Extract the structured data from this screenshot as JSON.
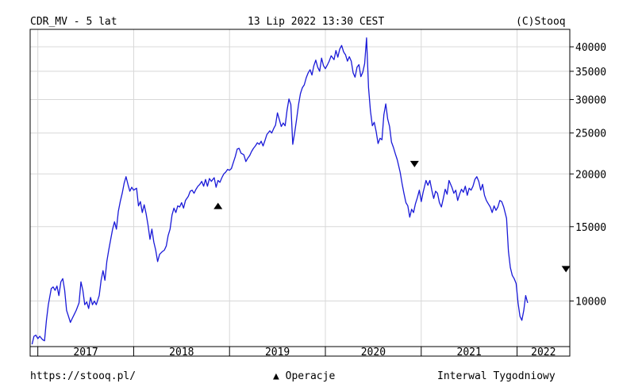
{
  "header": {
    "left": "CDR_MV - 5 lat",
    "center": "13 Lip 2022 13:30 CEST",
    "right": "(C)Stooq"
  },
  "footer": {
    "left": "https://stooq.pl/",
    "center_marker": "▲",
    "center": "Operacje",
    "right": "Interwal Tygodniowy"
  },
  "colors": {
    "line": "#1a1ad8",
    "grid": "#d8d8d8",
    "frame": "#000000"
  },
  "chart_data": {
    "type": "line",
    "scale": "log",
    "grid": true,
    "ylim": [
      7800,
      44000
    ],
    "xlim": [
      2016.92,
      2022.55
    ],
    "year_labels": [
      "2017",
      "2018",
      "2019",
      "2020",
      "2021",
      "2022"
    ],
    "yticks": [
      10000,
      15000,
      20000,
      25000,
      30000,
      35000,
      40000
    ],
    "ytick_labels": [
      "10000",
      "15000",
      "20000",
      "25000",
      "30000",
      "35000",
      "40000"
    ],
    "markers": [
      {
        "t": 2018.88,
        "y": 16800,
        "dir": "up"
      },
      {
        "t": 2020.93,
        "y": 21100,
        "dir": "down"
      },
      {
        "t": 2022.51,
        "y": 11900,
        "dir": "down"
      }
    ],
    "series": [
      {
        "values": [
          [
            2016.94,
            7900
          ],
          [
            2016.96,
            8250
          ],
          [
            2016.98,
            8300
          ],
          [
            2017.0,
            8150
          ],
          [
            2017.02,
            8250
          ],
          [
            2017.05,
            8100
          ],
          [
            2017.07,
            8050
          ],
          [
            2017.09,
            9000
          ],
          [
            2017.11,
            9800
          ],
          [
            2017.14,
            10700
          ],
          [
            2017.16,
            10800
          ],
          [
            2017.18,
            10600
          ],
          [
            2017.2,
            10850
          ],
          [
            2017.22,
            10300
          ],
          [
            2017.24,
            11100
          ],
          [
            2017.26,
            11300
          ],
          [
            2017.28,
            10600
          ],
          [
            2017.3,
            9500
          ],
          [
            2017.32,
            9200
          ],
          [
            2017.34,
            8900
          ],
          [
            2017.36,
            9100
          ],
          [
            2017.38,
            9300
          ],
          [
            2017.4,
            9500
          ],
          [
            2017.43,
            9900
          ],
          [
            2017.45,
            11100
          ],
          [
            2017.47,
            10600
          ],
          [
            2017.49,
            9800
          ],
          [
            2017.51,
            9950
          ],
          [
            2017.53,
            9600
          ],
          [
            2017.55,
            10200
          ],
          [
            2017.57,
            9800
          ],
          [
            2017.59,
            10000
          ],
          [
            2017.61,
            9800
          ],
          [
            2017.64,
            10300
          ],
          [
            2017.66,
            11200
          ],
          [
            2017.68,
            11800
          ],
          [
            2017.7,
            11200
          ],
          [
            2017.72,
            12400
          ],
          [
            2017.74,
            13200
          ],
          [
            2017.76,
            14000
          ],
          [
            2017.78,
            14800
          ],
          [
            2017.8,
            15400
          ],
          [
            2017.82,
            14800
          ],
          [
            2017.84,
            16300
          ],
          [
            2017.86,
            17200
          ],
          [
            2017.88,
            18000
          ],
          [
            2017.9,
            19000
          ],
          [
            2017.92,
            19700
          ],
          [
            2017.94,
            18900
          ],
          [
            2017.96,
            18200
          ],
          [
            2017.98,
            18600
          ],
          [
            2018.0,
            18300
          ],
          [
            2018.03,
            18500
          ],
          [
            2018.05,
            16800
          ],
          [
            2018.07,
            17200
          ],
          [
            2018.09,
            16200
          ],
          [
            2018.11,
            16900
          ],
          [
            2018.13,
            16100
          ],
          [
            2018.15,
            15100
          ],
          [
            2018.17,
            14000
          ],
          [
            2018.19,
            14800
          ],
          [
            2018.21,
            13800
          ],
          [
            2018.23,
            13200
          ],
          [
            2018.25,
            12400
          ],
          [
            2018.27,
            12900
          ],
          [
            2018.3,
            13100
          ],
          [
            2018.32,
            13200
          ],
          [
            2018.34,
            13500
          ],
          [
            2018.36,
            14300
          ],
          [
            2018.38,
            14800
          ],
          [
            2018.4,
            16000
          ],
          [
            2018.42,
            16600
          ],
          [
            2018.44,
            16200
          ],
          [
            2018.46,
            16800
          ],
          [
            2018.48,
            16700
          ],
          [
            2018.5,
            17100
          ],
          [
            2018.52,
            16600
          ],
          [
            2018.54,
            17300
          ],
          [
            2018.57,
            17700
          ],
          [
            2018.59,
            18200
          ],
          [
            2018.61,
            18300
          ],
          [
            2018.63,
            18000
          ],
          [
            2018.65,
            18400
          ],
          [
            2018.67,
            18700
          ],
          [
            2018.69,
            18900
          ],
          [
            2018.71,
            19200
          ],
          [
            2018.73,
            18700
          ],
          [
            2018.75,
            19400
          ],
          [
            2018.77,
            18700
          ],
          [
            2018.79,
            19500
          ],
          [
            2018.81,
            19200
          ],
          [
            2018.84,
            19600
          ],
          [
            2018.86,
            18600
          ],
          [
            2018.88,
            19300
          ],
          [
            2018.9,
            19100
          ],
          [
            2018.92,
            19600
          ],
          [
            2018.94,
            20000
          ],
          [
            2018.96,
            20200
          ],
          [
            2018.98,
            20500
          ],
          [
            2019.0,
            20400
          ],
          [
            2019.02,
            20600
          ],
          [
            2019.04,
            21300
          ],
          [
            2019.06,
            22000
          ],
          [
            2019.08,
            22900
          ],
          [
            2019.1,
            23000
          ],
          [
            2019.12,
            22400
          ],
          [
            2019.15,
            22200
          ],
          [
            2019.17,
            21400
          ],
          [
            2019.19,
            21800
          ],
          [
            2019.21,
            22100
          ],
          [
            2019.23,
            22600
          ],
          [
            2019.25,
            23000
          ],
          [
            2019.27,
            23300
          ],
          [
            2019.29,
            23700
          ],
          [
            2019.31,
            23500
          ],
          [
            2019.33,
            23900
          ],
          [
            2019.35,
            23300
          ],
          [
            2019.37,
            24000
          ],
          [
            2019.39,
            24800
          ],
          [
            2019.42,
            25300
          ],
          [
            2019.44,
            25000
          ],
          [
            2019.46,
            25600
          ],
          [
            2019.48,
            26100
          ],
          [
            2019.5,
            27900
          ],
          [
            2019.52,
            26900
          ],
          [
            2019.54,
            25900
          ],
          [
            2019.56,
            26400
          ],
          [
            2019.58,
            26000
          ],
          [
            2019.6,
            28300
          ],
          [
            2019.62,
            30100
          ],
          [
            2019.64,
            29200
          ],
          [
            2019.66,
            23500
          ],
          [
            2019.68,
            25100
          ],
          [
            2019.7,
            27000
          ],
          [
            2019.72,
            29200
          ],
          [
            2019.74,
            31000
          ],
          [
            2019.76,
            32000
          ],
          [
            2019.78,
            32500
          ],
          [
            2019.8,
            33800
          ],
          [
            2019.82,
            34700
          ],
          [
            2019.84,
            35300
          ],
          [
            2019.86,
            34300
          ],
          [
            2019.88,
            36100
          ],
          [
            2019.9,
            37200
          ],
          [
            2019.92,
            35800
          ],
          [
            2019.94,
            35000
          ],
          [
            2019.96,
            37600
          ],
          [
            2019.98,
            36100
          ],
          [
            2020.0,
            35500
          ],
          [
            2020.02,
            36200
          ],
          [
            2020.04,
            37000
          ],
          [
            2020.06,
            38100
          ],
          [
            2020.09,
            37300
          ],
          [
            2020.11,
            39200
          ],
          [
            2020.13,
            37800
          ],
          [
            2020.15,
            39500
          ],
          [
            2020.17,
            40300
          ],
          [
            2020.19,
            38900
          ],
          [
            2020.21,
            38300
          ],
          [
            2020.23,
            37000
          ],
          [
            2020.25,
            37900
          ],
          [
            2020.27,
            37000
          ],
          [
            2020.29,
            34700
          ],
          [
            2020.31,
            33900
          ],
          [
            2020.33,
            35800
          ],
          [
            2020.35,
            36300
          ],
          [
            2020.37,
            34000
          ],
          [
            2020.39,
            34800
          ],
          [
            2020.41,
            36500
          ],
          [
            2020.43,
            42000
          ],
          [
            2020.45,
            32000
          ],
          [
            2020.47,
            28200
          ],
          [
            2020.49,
            26000
          ],
          [
            2020.51,
            26500
          ],
          [
            2020.53,
            25200
          ],
          [
            2020.55,
            23600
          ],
          [
            2020.57,
            24300
          ],
          [
            2020.59,
            24100
          ],
          [
            2020.61,
            27600
          ],
          [
            2020.63,
            29300
          ],
          [
            2020.65,
            27000
          ],
          [
            2020.67,
            25900
          ],
          [
            2020.69,
            23800
          ],
          [
            2020.71,
            23100
          ],
          [
            2020.73,
            22300
          ],
          [
            2020.75,
            21600
          ],
          [
            2020.78,
            20200
          ],
          [
            2020.8,
            19000
          ],
          [
            2020.82,
            18000
          ],
          [
            2020.84,
            17100
          ],
          [
            2020.86,
            16800
          ],
          [
            2020.88,
            15800
          ],
          [
            2020.9,
            16500
          ],
          [
            2020.92,
            16200
          ],
          [
            2020.94,
            17000
          ],
          [
            2020.96,
            17600
          ],
          [
            2020.98,
            18300
          ],
          [
            2021.0,
            17200
          ],
          [
            2021.02,
            18100
          ],
          [
            2021.05,
            19300
          ],
          [
            2021.07,
            18800
          ],
          [
            2021.09,
            19300
          ],
          [
            2021.11,
            18300
          ],
          [
            2021.13,
            17500
          ],
          [
            2021.15,
            18200
          ],
          [
            2021.17,
            18000
          ],
          [
            2021.19,
            17100
          ],
          [
            2021.21,
            16700
          ],
          [
            2021.23,
            17500
          ],
          [
            2021.25,
            18400
          ],
          [
            2021.27,
            17900
          ],
          [
            2021.29,
            19300
          ],
          [
            2021.32,
            18600
          ],
          [
            2021.34,
            18000
          ],
          [
            2021.36,
            18300
          ],
          [
            2021.38,
            17300
          ],
          [
            2021.4,
            17900
          ],
          [
            2021.42,
            18400
          ],
          [
            2021.44,
            18100
          ],
          [
            2021.46,
            18700
          ],
          [
            2021.48,
            17800
          ],
          [
            2021.5,
            18500
          ],
          [
            2021.52,
            18300
          ],
          [
            2021.54,
            18700
          ],
          [
            2021.56,
            19400
          ],
          [
            2021.58,
            19700
          ],
          [
            2021.6,
            19200
          ],
          [
            2021.62,
            18300
          ],
          [
            2021.64,
            18900
          ],
          [
            2021.66,
            17800
          ],
          [
            2021.68,
            17300
          ],
          [
            2021.7,
            17000
          ],
          [
            2021.72,
            16700
          ],
          [
            2021.74,
            16200
          ],
          [
            2021.76,
            16800
          ],
          [
            2021.78,
            16400
          ],
          [
            2021.8,
            16700
          ],
          [
            2021.82,
            17300
          ],
          [
            2021.84,
            17200
          ],
          [
            2021.86,
            16700
          ],
          [
            2021.89,
            15700
          ],
          [
            2021.91,
            13100
          ],
          [
            2021.93,
            12000
          ],
          [
            2021.95,
            11500
          ],
          [
            2021.97,
            11300
          ],
          [
            2021.99,
            11000
          ],
          [
            2022.01,
            9900
          ],
          [
            2022.03,
            9200
          ],
          [
            2022.05,
            9000
          ],
          [
            2022.07,
            9500
          ],
          [
            2022.09,
            10300
          ],
          [
            2022.11,
            9900
          ]
        ]
      }
    ]
  }
}
